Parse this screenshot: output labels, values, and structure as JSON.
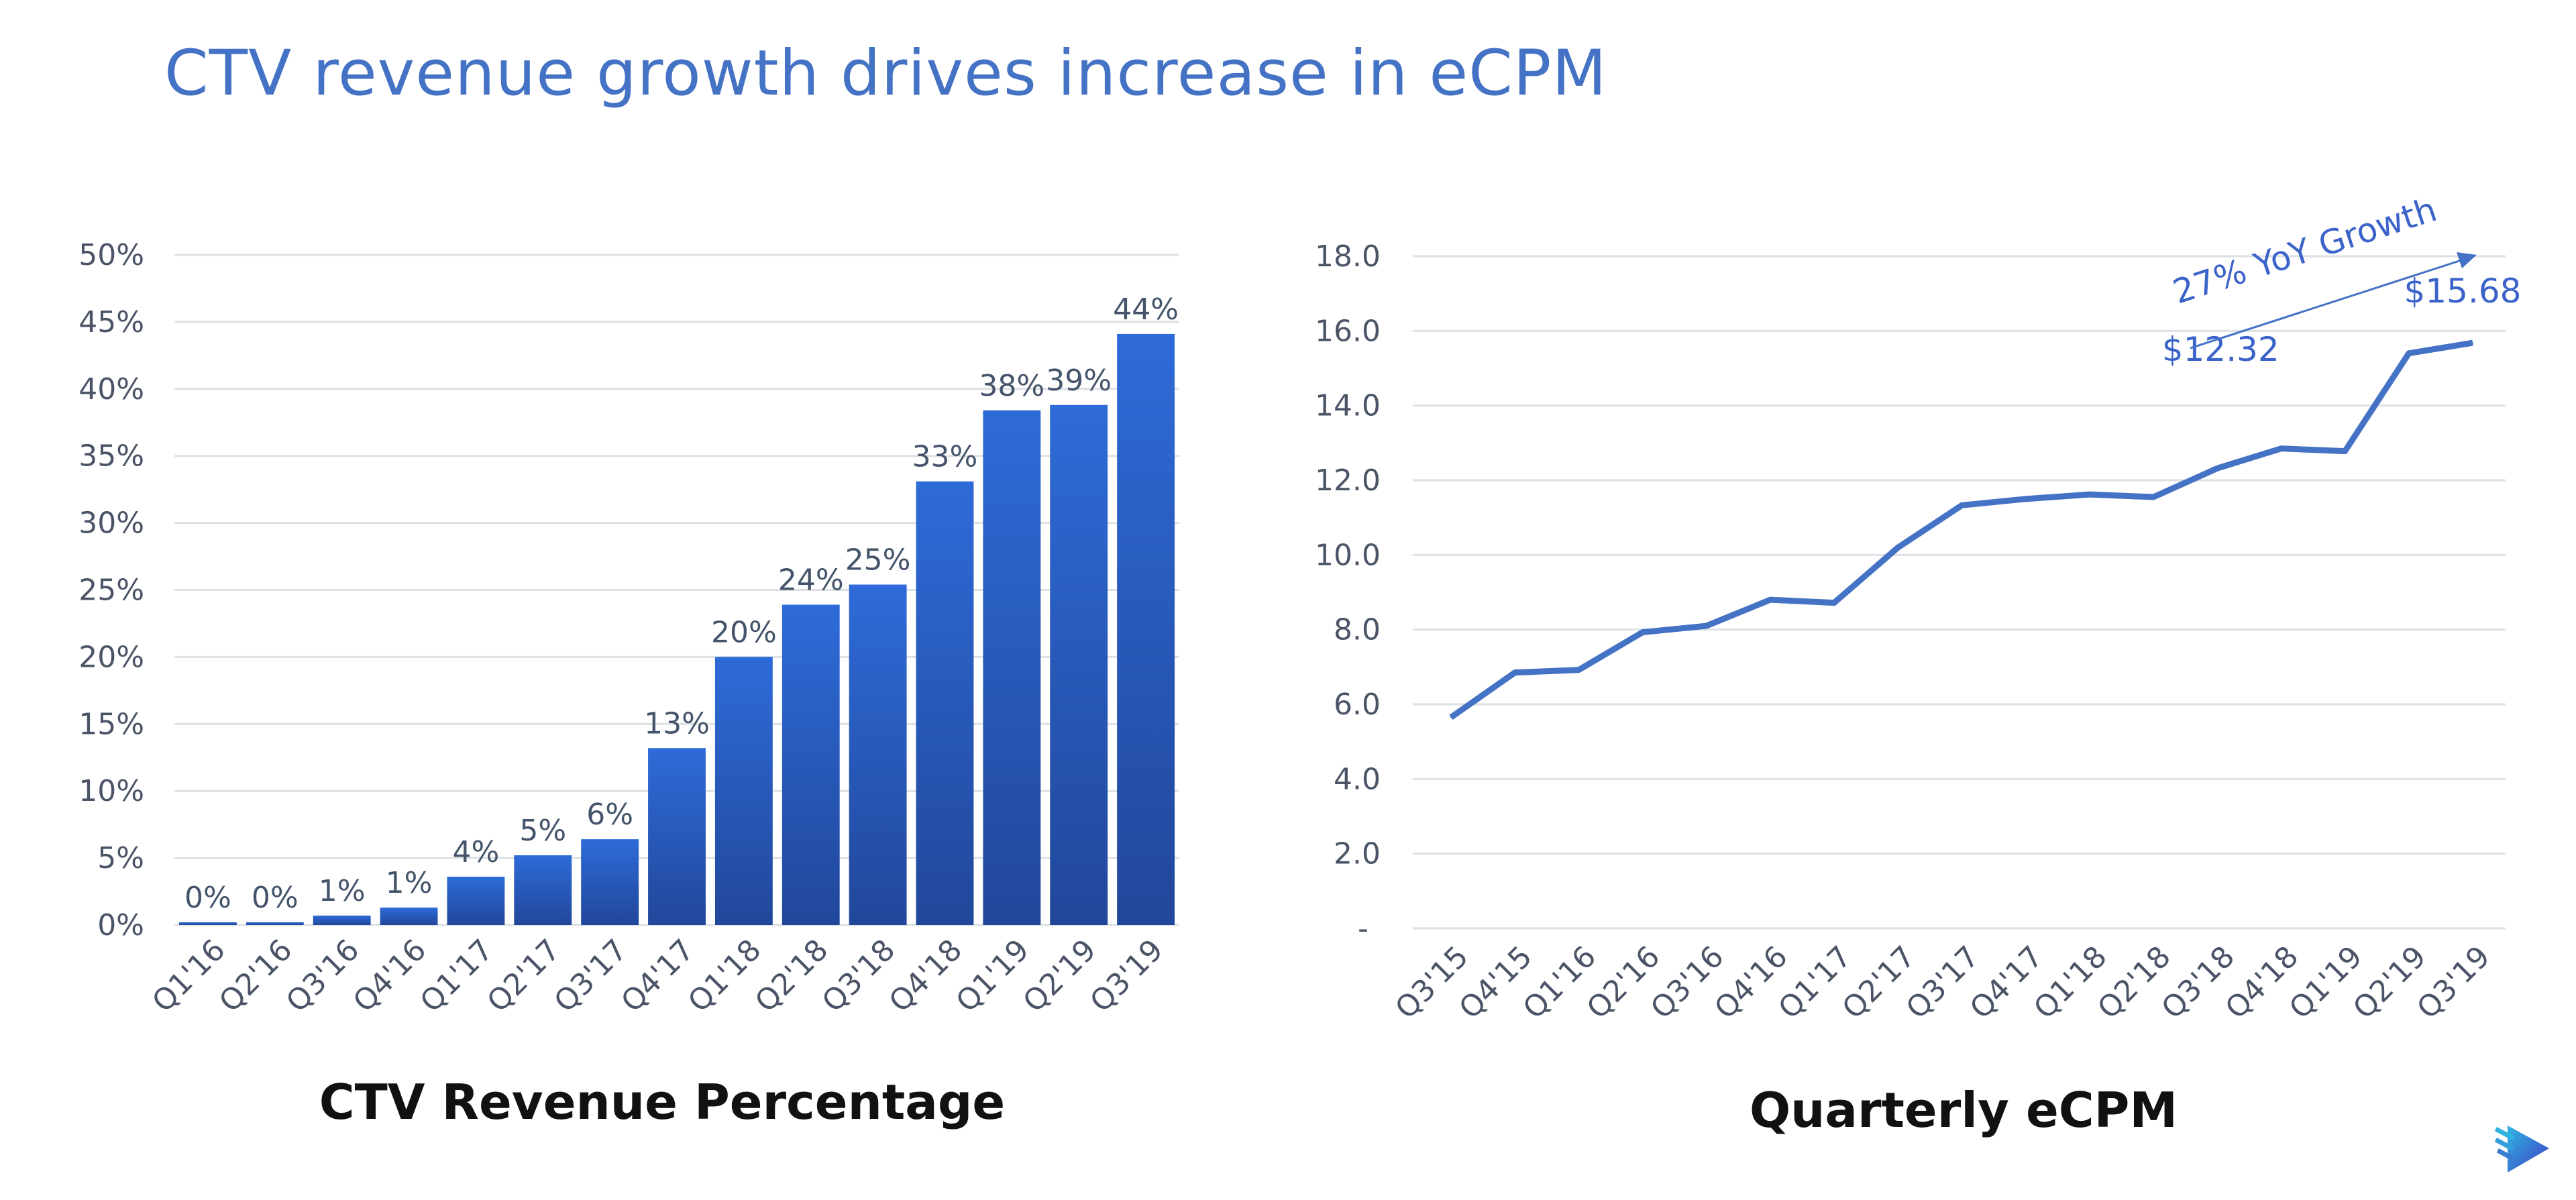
{
  "title": "CTV revenue growth drives increase in eCPM",
  "logo": {
    "name": "play-arrow-logo",
    "colors": [
      "#2FB4E0",
      "#3F3FC4"
    ]
  },
  "chart_data": [
    {
      "type": "bar",
      "title": "CTV Revenue Percentage",
      "categories": [
        "Q1'16",
        "Q2'16",
        "Q3'16",
        "Q4'16",
        "Q1'17",
        "Q2'17",
        "Q3'17",
        "Q4'17",
        "Q1'18",
        "Q2'18",
        "Q3'18",
        "Q4'18",
        "Q1'19",
        "Q2'19",
        "Q3'19"
      ],
      "values": [
        0.2,
        0.2,
        0.7,
        1.3,
        3.6,
        5.2,
        6.4,
        13.2,
        20.0,
        23.9,
        25.4,
        33.1,
        38.4,
        38.8,
        44.1
      ],
      "data_labels": [
        "0%",
        "0%",
        "1%",
        "1%",
        "4%",
        "5%",
        "6%",
        "13%",
        "20%",
        "24%",
        "25%",
        "33%",
        "38%",
        "39%",
        "44%"
      ],
      "ylim": [
        0,
        50
      ],
      "yticks": [
        "0%",
        "5%",
        "10%",
        "15%",
        "20%",
        "25%",
        "30%",
        "35%",
        "40%",
        "45%",
        "50%"
      ],
      "grid": true,
      "color_top": "#2E6BD8",
      "color_bottom": "#21479A"
    },
    {
      "type": "line",
      "title": "Quarterly eCPM",
      "categories": [
        "Q3'15",
        "Q4'15",
        "Q1'16",
        "Q2'16",
        "Q3'16",
        "Q4'16",
        "Q1'17",
        "Q2'17",
        "Q3'17",
        "Q4'17",
        "Q1'18",
        "Q2'18",
        "Q3'18",
        "Q4'18",
        "Q1'19",
        "Q2'19",
        "Q3'19"
      ],
      "values": [
        5.65,
        6.85,
        6.92,
        7.93,
        8.1,
        8.8,
        8.72,
        10.2,
        11.33,
        11.5,
        11.62,
        11.55,
        12.32,
        12.85,
        12.78,
        15.4,
        15.68
      ],
      "ylim": [
        0,
        18
      ],
      "yticks": [
        "-",
        "2.0",
        "4.0",
        "6.0",
        "8.0",
        "10.0",
        "12.0",
        "14.0",
        "16.0",
        "18.0"
      ],
      "grid": true,
      "color": "#4472C4",
      "annotations": [
        {
          "text": "$12.32",
          "category": "Q3'18"
        },
        {
          "text": "$15.68",
          "category": "Q3'19"
        },
        {
          "text": "27% YoY Growth",
          "type": "trend-arrow"
        }
      ]
    }
  ]
}
